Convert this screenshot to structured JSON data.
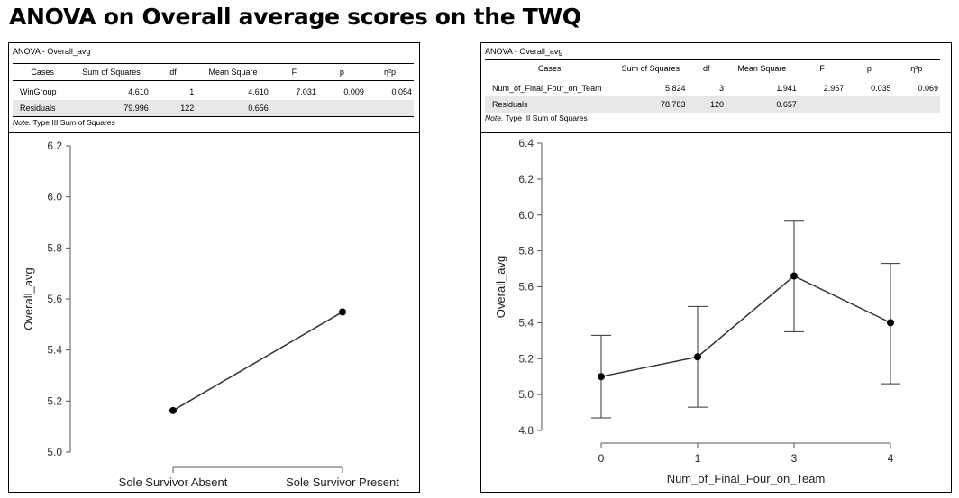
{
  "page_title": "ANOVA on Overall average scores on the TWQ",
  "left": {
    "table_title": "ANOVA - Overall_avg",
    "headers": [
      "Cases",
      "Sum of Squares",
      "df",
      "Mean Square",
      "F",
      "p",
      "η²p"
    ],
    "rows": [
      [
        "WinGroup",
        "4.610",
        "1",
        "4.610",
        "7.031",
        "0.009",
        "0.054"
      ],
      [
        "Residuals",
        "79.996",
        "122",
        "0.656",
        "",
        "",
        ""
      ]
    ],
    "note_label": "Note.",
    "note_text": "Type III Sum of Squares"
  },
  "right": {
    "table_title": "ANOVA - Overall_avg",
    "headers": [
      "Cases",
      "Sum of Squares",
      "df",
      "Mean Square",
      "F",
      "p",
      "η²p"
    ],
    "rows": [
      [
        "Num_of_Final_Four_on_Team",
        "5.824",
        "3",
        "1.941",
        "2.957",
        "0.035",
        "0.069"
      ],
      [
        "Residuals",
        "78.783",
        "120",
        "0.657",
        "",
        "",
        ""
      ]
    ],
    "note_label": "Note.",
    "note_text": "Type III Sum of Squares"
  },
  "chart_data": [
    {
      "type": "line",
      "title": "",
      "xlabel": "",
      "ylabel": "Overall_avg",
      "categories": [
        "Sole Survivor Absent",
        "Sole Survivor Present"
      ],
      "values": [
        5.163,
        5.549
      ],
      "ylim": [
        5.0,
        6.2
      ],
      "yticks": [
        "5.0",
        "5.2",
        "5.4",
        "5.6",
        "5.8",
        "6.0",
        "6.2"
      ],
      "grid": false,
      "color": "#333333"
    },
    {
      "type": "line",
      "title": "",
      "xlabel": "Num_of_Final_Four_on_Team",
      "ylabel": "Overall_avg",
      "categories": [
        "0",
        "1",
        "3",
        "4"
      ],
      "values": [
        5.1,
        5.21,
        5.66,
        5.4
      ],
      "error_lower": [
        4.87,
        4.93,
        5.35,
        5.06
      ],
      "error_upper": [
        5.33,
        5.49,
        5.97,
        5.73
      ],
      "ylim": [
        4.8,
        6.4
      ],
      "yticks": [
        "4.8",
        "5.0",
        "5.2",
        "5.4",
        "5.6",
        "5.8",
        "6.0",
        "6.2",
        "6.4"
      ],
      "grid": false,
      "color": "#333333"
    }
  ]
}
